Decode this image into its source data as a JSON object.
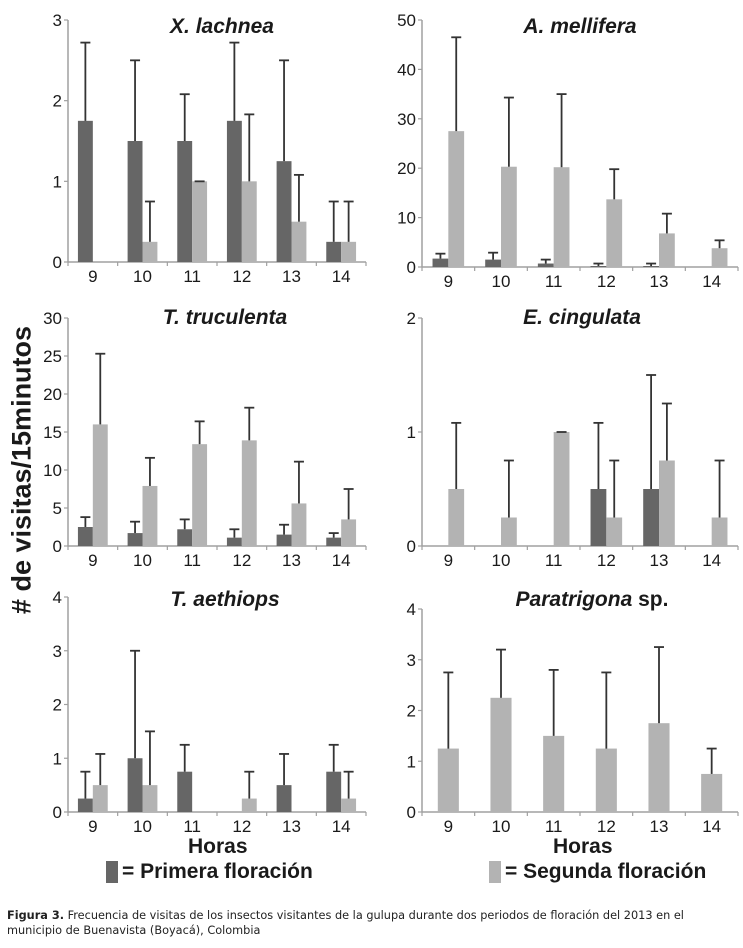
{
  "figure": {
    "y_axis_label": "# de visitas/15minutos",
    "x_axis_label_left": "Horas",
    "x_axis_label_right": "Horas",
    "legend": [
      {
        "label": "= Primera floración",
        "color": "#666666"
      },
      {
        "label": "= Segunda floración",
        "color": "#b3b3b3"
      }
    ],
    "caption_label": "Figura 3.",
    "caption_text": " Frecuencia de visitas de los insectos visitantes de la gulupa durante dos periodos de floración del 2013 en el municipio de Buenavista (Boyacá), Colombia"
  },
  "chart_data": [
    {
      "type": "bar",
      "title": "X. lachnea",
      "title_italic_part": "X. lachnea",
      "title_suffix": "",
      "categories": [
        "9",
        "10",
        "11",
        "12",
        "13",
        "14"
      ],
      "xlabel": "",
      "ylabel": "# de visitas/15minutos",
      "ylim": [
        0,
        3
      ],
      "yticks": [
        0,
        1,
        2,
        3
      ],
      "series": [
        {
          "name": "Primera floración",
          "color": "#666666",
          "values": [
            1.75,
            1.5,
            1.5,
            1.75,
            1.25,
            0.25
          ],
          "error_upper": [
            2.72,
            2.5,
            2.08,
            2.72,
            2.5,
            0.75
          ]
        },
        {
          "name": "Segunda floración",
          "color": "#b3b3b3",
          "values": [
            0,
            0.25,
            1.0,
            1.0,
            0.5,
            0.25
          ],
          "error_upper": [
            0,
            0.75,
            1.0,
            1.83,
            1.08,
            0.75
          ]
        }
      ]
    },
    {
      "type": "bar",
      "title": "A. mellifera",
      "title_italic_part": "A. mellifera",
      "title_suffix": "",
      "categories": [
        "9",
        "10",
        "11",
        "12",
        "13",
        "14"
      ],
      "xlabel": "",
      "ylabel": "# de visitas/15minutos",
      "ylim": [
        0,
        50
      ],
      "yticks": [
        0,
        10,
        20,
        30,
        40,
        50
      ],
      "series": [
        {
          "name": "Primera floración",
          "color": "#666666",
          "values": [
            1.7,
            1.5,
            0.7,
            0.2,
            0.2,
            0.0
          ],
          "error_upper": [
            2.7,
            2.9,
            1.5,
            0.7,
            0.7,
            0.0
          ]
        },
        {
          "name": "Segunda floración",
          "color": "#b3b3b3",
          "values": [
            27.5,
            20.3,
            20.2,
            13.7,
            6.8,
            3.8
          ],
          "error_upper": [
            46.5,
            34.3,
            35.0,
            19.8,
            10.8,
            5.4
          ]
        }
      ]
    },
    {
      "type": "bar",
      "title": "T. truculenta",
      "title_italic_part": "T. truculenta",
      "title_suffix": "",
      "categories": [
        "9",
        "10",
        "11",
        "12",
        "13",
        "14"
      ],
      "xlabel": "",
      "ylabel": "# de visitas/15minutos",
      "ylim": [
        0,
        30
      ],
      "yticks": [
        0,
        5,
        10,
        15,
        20,
        25,
        30
      ],
      "series": [
        {
          "name": "Primera floración",
          "color": "#666666",
          "values": [
            2.5,
            1.7,
            2.2,
            1.1,
            1.5,
            1.1
          ],
          "error_upper": [
            3.8,
            3.2,
            3.5,
            2.2,
            2.8,
            1.7
          ]
        },
        {
          "name": "Segunda floración",
          "color": "#b3b3b3",
          "values": [
            16.0,
            7.9,
            13.4,
            13.9,
            5.6,
            3.5
          ],
          "error_upper": [
            25.3,
            11.6,
            16.4,
            18.2,
            11.1,
            7.5
          ]
        }
      ]
    },
    {
      "type": "bar",
      "title": "E. cingulata",
      "title_italic_part": "E. cingulata",
      "title_suffix": "",
      "categories": [
        "9",
        "10",
        "11",
        "12",
        "13",
        "14"
      ],
      "xlabel": "",
      "ylabel": "# de visitas/15minutos",
      "ylim": [
        0,
        2
      ],
      "yticks": [
        0,
        1,
        2
      ],
      "series": [
        {
          "name": "Primera floración",
          "color": "#666666",
          "values": [
            0,
            0,
            0,
            0.5,
            0.5,
            0
          ],
          "error_upper": [
            0,
            0,
            0,
            1.08,
            1.5,
            0
          ]
        },
        {
          "name": "Segunda floración",
          "color": "#b3b3b3",
          "values": [
            0.5,
            0.25,
            1.0,
            0.25,
            0.75,
            0.25
          ],
          "error_upper": [
            1.08,
            0.75,
            1.0,
            0.75,
            1.25,
            0.75
          ]
        }
      ]
    },
    {
      "type": "bar",
      "title": "T. aethiops",
      "title_italic_part": "T. aethiops",
      "title_suffix": "",
      "categories": [
        "9",
        "10",
        "11",
        "12",
        "13",
        "14"
      ],
      "xlabel": "Horas",
      "ylabel": "# de visitas/15minutos",
      "ylim": [
        0,
        4
      ],
      "yticks": [
        0,
        1,
        2,
        3,
        4
      ],
      "series": [
        {
          "name": "Primera floración",
          "color": "#666666",
          "values": [
            0.25,
            1.0,
            0.75,
            0,
            0.5,
            0.75
          ],
          "error_upper": [
            0.75,
            3.0,
            1.25,
            0,
            1.08,
            1.25
          ]
        },
        {
          "name": "Segunda floración",
          "color": "#b3b3b3",
          "values": [
            0.5,
            0.5,
            0,
            0.25,
            0,
            0.25
          ],
          "error_upper": [
            1.08,
            1.5,
            0,
            0.75,
            0,
            0.75
          ]
        }
      ]
    },
    {
      "type": "bar",
      "title": "Paratrigona sp.",
      "title_italic_part": "Paratrigona",
      "title_suffix": " sp.",
      "categories": [
        "9",
        "10",
        "11",
        "12",
        "13",
        "14"
      ],
      "xlabel": "Horas",
      "ylabel": "# de visitas/15minutos",
      "ylim": [
        0,
        4
      ],
      "yticks": [
        0,
        1,
        2,
        3,
        4
      ],
      "series": [
        {
          "name": "Segunda floración",
          "color": "#b3b3b3",
          "values": [
            1.25,
            2.25,
            1.5,
            1.25,
            1.75,
            0.75
          ],
          "error_upper": [
            2.75,
            3.2,
            2.8,
            2.75,
            3.25,
            1.25
          ]
        }
      ]
    }
  ]
}
